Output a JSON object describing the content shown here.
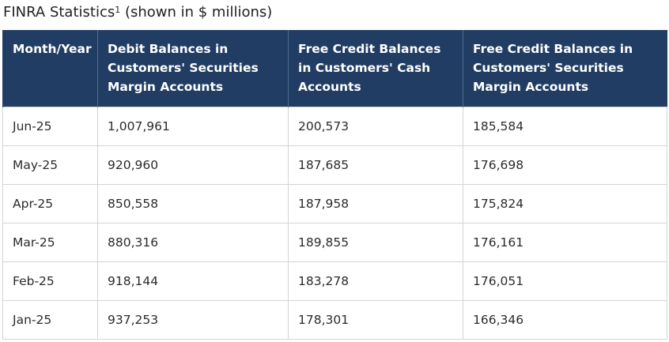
{
  "title": {
    "text": "FINRA Statistics",
    "footnote": "1",
    "suffix": " (shown in $ millions)"
  },
  "table": {
    "headers": [
      "Month/Year",
      "Debit Balances in Customers' Securities Margin Accounts",
      "Free Credit Balances in Customers' Cash Accounts",
      "Free Credit Balances in Customers' Securities Margin Accounts"
    ],
    "rows": [
      [
        "Jun-25",
        "1,007,961",
        "200,573",
        "185,584"
      ],
      [
        "May-25",
        "920,960",
        "187,685",
        "176,698"
      ],
      [
        "Apr-25",
        "850,558",
        "187,958",
        "175,824"
      ],
      [
        "Mar-25",
        "880,316",
        "189,855",
        "176,161"
      ],
      [
        "Feb-25",
        "918,144",
        "183,278",
        "176,051"
      ],
      [
        "Jan-25",
        "937,253",
        "178,301",
        "166,346"
      ]
    ]
  }
}
